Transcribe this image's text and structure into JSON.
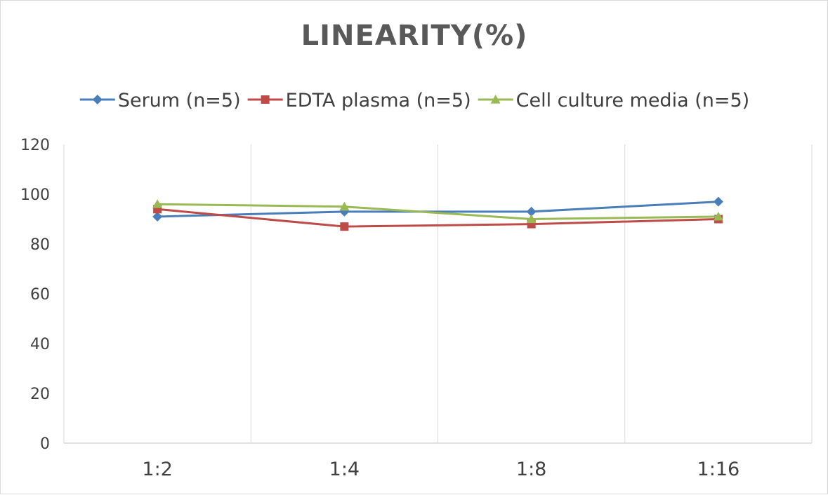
{
  "chart_data": {
    "type": "line",
    "title": "LINEARITY(%)",
    "xlabel": "",
    "ylabel": "",
    "categories": [
      "1:2",
      "1:4",
      "1:8",
      "1:16"
    ],
    "ylim": [
      0,
      120
    ],
    "yticks": [
      0,
      20,
      40,
      60,
      80,
      100,
      120
    ],
    "grid": "vertical",
    "legend_position": "top",
    "series": [
      {
        "name": "Serum (n=5)",
        "values": [
          91,
          93,
          93,
          97
        ],
        "color": "#4a7ebb",
        "marker": "diamond"
      },
      {
        "name": "EDTA plasma (n=5)",
        "values": [
          94,
          87,
          88,
          90
        ],
        "color": "#be4b48",
        "marker": "square"
      },
      {
        "name": "Cell culture media (n=5)",
        "values": [
          96,
          95,
          90,
          91
        ],
        "color": "#98b954",
        "marker": "triangle"
      }
    ]
  }
}
